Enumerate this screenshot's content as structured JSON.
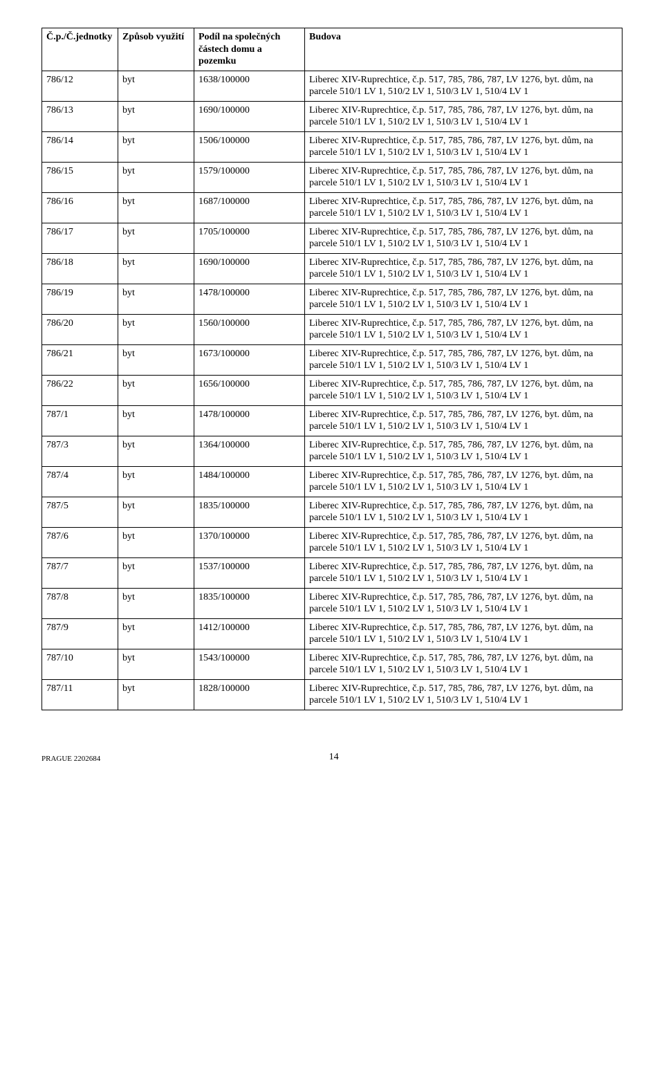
{
  "headers": {
    "unit": "Č.p./Č.jednotky",
    "use": "Způsob využití",
    "share": "Podíl na společných částech domu a pozemku",
    "building": "Budova"
  },
  "building_text": "Liberec XIV-Ruprechtice, č.p. 517, 785, 786, 787, LV 1276, byt. dům, na parcele 510/1 LV 1, 510/2 LV 1, 510/3 LV 1, 510/4 LV 1",
  "rows": [
    {
      "unit": "786/12",
      "use": "byt",
      "share": "1638/100000"
    },
    {
      "unit": "786/13",
      "use": "byt",
      "share": "1690/100000"
    },
    {
      "unit": "786/14",
      "use": "byt",
      "share": "1506/100000"
    },
    {
      "unit": "786/15",
      "use": "byt",
      "share": "1579/100000"
    },
    {
      "unit": "786/16",
      "use": "byt",
      "share": "1687/100000"
    },
    {
      "unit": "786/17",
      "use": "byt",
      "share": "1705/100000"
    },
    {
      "unit": "786/18",
      "use": "byt",
      "share": "1690/100000"
    },
    {
      "unit": "786/19",
      "use": "byt",
      "share": "1478/100000"
    },
    {
      "unit": "786/20",
      "use": "byt",
      "share": "1560/100000"
    },
    {
      "unit": "786/21",
      "use": "byt",
      "share": "1673/100000"
    },
    {
      "unit": "786/22",
      "use": "byt",
      "share": "1656/100000"
    },
    {
      "unit": "787/1",
      "use": "byt",
      "share": "1478/100000"
    },
    {
      "unit": "787/3",
      "use": "byt",
      "share": "1364/100000"
    },
    {
      "unit": "787/4",
      "use": "byt",
      "share": "1484/100000"
    },
    {
      "unit": "787/5",
      "use": "byt",
      "share": "1835/100000"
    },
    {
      "unit": "787/6",
      "use": "byt",
      "share": "1370/100000"
    },
    {
      "unit": "787/7",
      "use": "byt",
      "share": "1537/100000"
    },
    {
      "unit": "787/8",
      "use": "byt",
      "share": "1835/100000"
    },
    {
      "unit": "787/9",
      "use": "byt",
      "share": "1412/100000"
    },
    {
      "unit": "787/10",
      "use": "byt",
      "share": "1543/100000"
    },
    {
      "unit": "787/11",
      "use": "byt",
      "share": "1828/100000"
    }
  ],
  "footer": {
    "left": "PRAGUE 2202684",
    "page": "14"
  }
}
